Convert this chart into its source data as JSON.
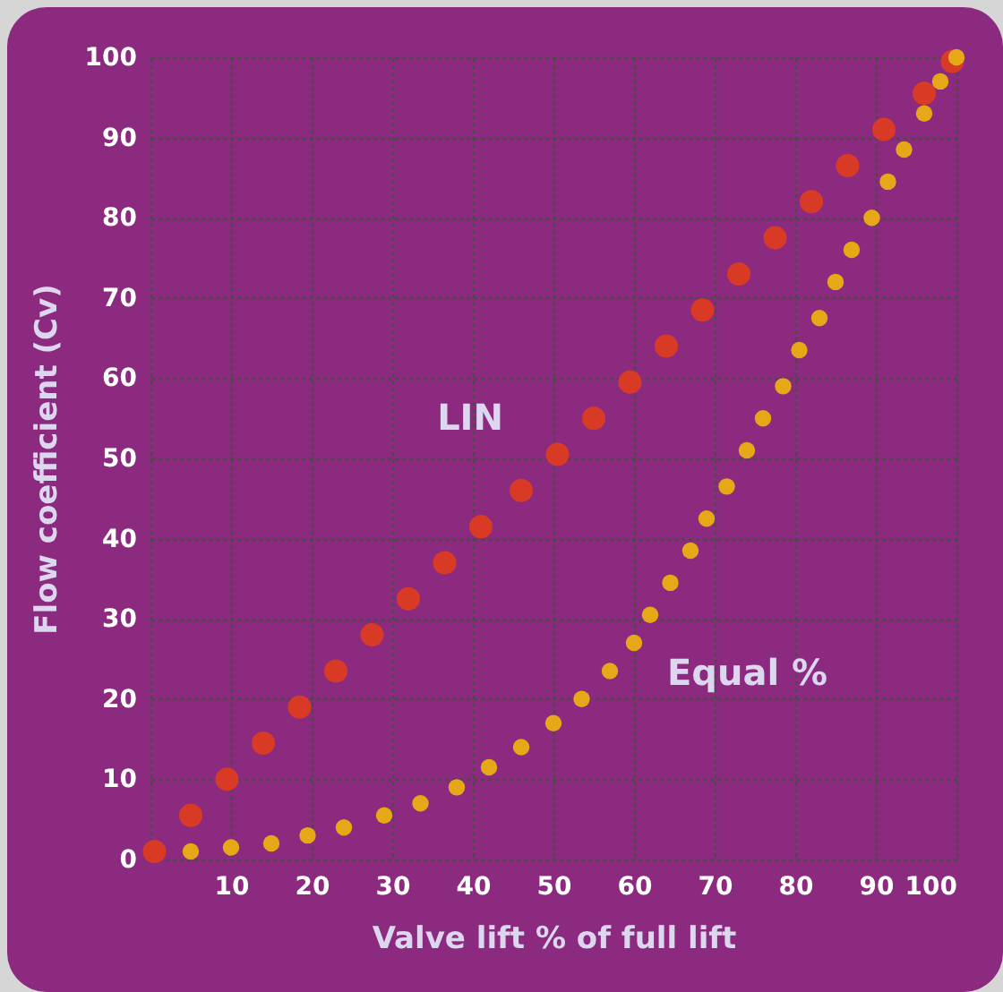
{
  "chart_data": {
    "type": "scatter",
    "xlabel": "Valve lift % of full lift",
    "ylabel": "Flow coefficient (Cv)",
    "xlim": [
      0,
      100
    ],
    "ylim": [
      0,
      100
    ],
    "xticks": [
      {
        "value": 0,
        "label": null
      },
      10,
      20,
      30,
      40,
      50,
      60,
      70,
      80,
      90,
      100
    ],
    "yticks": [
      0,
      10,
      20,
      30,
      40,
      50,
      60,
      70,
      80,
      90,
      100
    ],
    "grid": true,
    "marker": "circle",
    "series": [
      {
        "name": "LIN",
        "color": "#d93a26",
        "x": [
          0.5,
          5,
          9.5,
          14,
          18.5,
          23,
          27.5,
          32,
          36.5,
          41,
          46,
          50.5,
          55,
          59.5,
          64,
          68.5,
          73,
          77.5,
          82,
          86.5,
          91,
          96,
          99.5
        ],
        "values": [
          1,
          5.5,
          10,
          14.5,
          19,
          23.5,
          28,
          32.5,
          37,
          41.5,
          46,
          50.5,
          55,
          59.5,
          64,
          68.5,
          73,
          77.5,
          82,
          86.5,
          91,
          95.5,
          99.5
        ]
      },
      {
        "name": "Equal %",
        "color": "#e6a817",
        "x": [
          5,
          10,
          15,
          19.5,
          24,
          29,
          33.5,
          38,
          42,
          46,
          50,
          53.5,
          57,
          60,
          62,
          64.5,
          67,
          69,
          71.5,
          74,
          76,
          78.5,
          80.5,
          83,
          85,
          87,
          89.5,
          91.5,
          93.5,
          96,
          98,
          100
        ],
        "values": [
          1,
          1.5,
          2,
          3,
          4,
          5.5,
          7,
          9,
          11.5,
          14,
          17,
          20,
          23.5,
          27,
          30.5,
          34.5,
          38.5,
          42.5,
          46.5,
          51,
          55,
          59,
          63.5,
          67.5,
          72,
          76,
          80,
          84.5,
          88.5,
          93,
          97,
          100
        ]
      }
    ]
  }
}
